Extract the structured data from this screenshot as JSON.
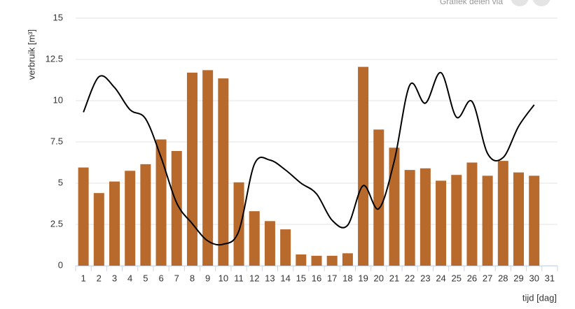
{
  "chart_data": {
    "type": "bar-line",
    "share_text": "Grafiek delen via",
    "ylabel": "verbruik [m³]",
    "xlabel": "tijd [dag]",
    "categories": [
      "1",
      "2",
      "3",
      "4",
      "5",
      "6",
      "7",
      "8",
      "9",
      "10",
      "11",
      "12",
      "13",
      "14",
      "15",
      "16",
      "17",
      "18",
      "19",
      "20",
      "21",
      "22",
      "23",
      "24",
      "25",
      "26",
      "27",
      "28",
      "29",
      "30",
      "31"
    ],
    "series": [
      {
        "type": "bar",
        "color": "#b8692c",
        "values": [
          5.95,
          4.4,
          5.1,
          5.75,
          6.15,
          7.65,
          6.95,
          11.7,
          11.85,
          11.35,
          5.05,
          3.3,
          2.7,
          2.2,
          0.68,
          0.6,
          0.6,
          0.75,
          12.05,
          8.25,
          7.15,
          5.8,
          5.9,
          5.15,
          5.5,
          6.25,
          5.45,
          6.35,
          5.65,
          5.45,
          null
        ]
      },
      {
        "type": "line",
        "color": "#000000",
        "values": [
          9.3,
          11.45,
          10.8,
          9.45,
          8.9,
          6.55,
          3.8,
          2.55,
          1.5,
          1.3,
          2.1,
          6.15,
          6.4,
          5.8,
          5.0,
          4.35,
          2.75,
          2.45,
          4.85,
          3.45,
          6.35,
          10.95,
          9.85,
          11.7,
          9.0,
          9.95,
          6.8,
          6.55,
          8.45,
          9.75,
          null
        ]
      }
    ],
    "ylim": [
      0,
      15
    ],
    "yticks": [
      0,
      2.5,
      5,
      7.5,
      10,
      12.5,
      15
    ],
    "grid": true
  }
}
